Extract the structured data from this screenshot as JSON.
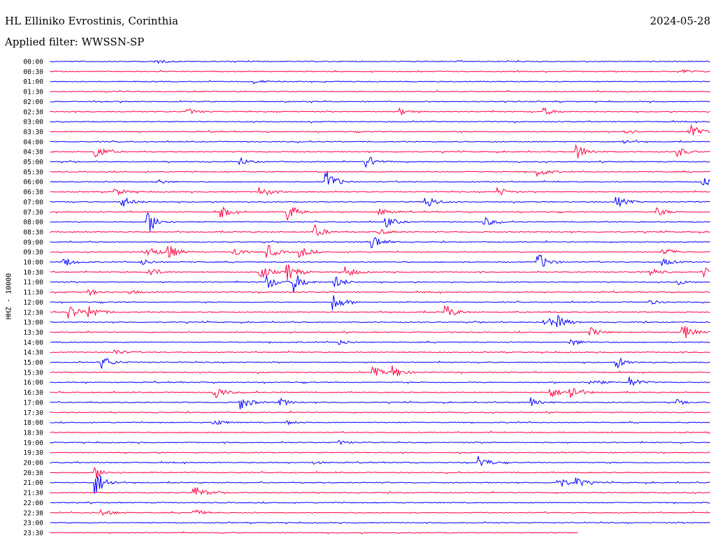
{
  "header": {
    "station": "HL Elliniko Evrostinis, Corinthia",
    "date": "2024-05-28",
    "filter": "Applied filter: WWSSN-SP"
  },
  "chart_data": {
    "type": "line",
    "title": "HL Elliniko Evrostinis, Corinthia",
    "ylabel": "HHZ - 10000",
    "row_labels": [
      "00:00",
      "00:30",
      "01:00",
      "01:30",
      "02:00",
      "02:30",
      "03:00",
      "03:30",
      "04:00",
      "04:30",
      "05:00",
      "05:30",
      "06:00",
      "06:30",
      "07:00",
      "07:30",
      "08:00",
      "08:30",
      "09:00",
      "09:30",
      "10:00",
      "10:30",
      "11:00",
      "11:30",
      "12:00",
      "12:30",
      "13:00",
      "13:30",
      "14:00",
      "14:30",
      "15:00",
      "15:30",
      "16:00",
      "16:30",
      "17:00",
      "17:30",
      "18:00",
      "18:30",
      "19:00",
      "19:30",
      "20:00",
      "20:30",
      "21:00",
      "21:30",
      "22:00",
      "22:30",
      "23:00",
      "23:30"
    ],
    "colors": [
      "#0000ff",
      "#ff0040"
    ],
    "row_interval_minutes": 30,
    "last_row_fraction_recorded": 0.8,
    "events": [
      [
        [
          0.16,
          0.6
        ]
      ],
      [
        [
          0.96,
          0.5
        ]
      ],
      [
        [
          0.31,
          0.5
        ]
      ],
      [],
      [],
      [
        [
          0.21,
          0.7
        ],
        [
          0.53,
          1.0
        ],
        [
          0.75,
          1.0
        ]
      ],
      [],
      [
        [
          0.97,
          2.2
        ],
        [
          0.87,
          0.8
        ]
      ],
      [
        [
          0.87,
          0.6
        ]
      ],
      [
        [
          0.07,
          2.0
        ],
        [
          0.8,
          2.0
        ],
        [
          0.95,
          1.5
        ]
      ],
      [
        [
          0.29,
          0.8
        ],
        [
          0.48,
          2.0
        ]
      ],
      [
        [
          0.74,
          1.2
        ]
      ],
      [
        [
          0.16,
          0.8
        ],
        [
          0.42,
          3.0
        ],
        [
          0.99,
          1.3
        ]
      ],
      [
        [
          0.1,
          1.0
        ],
        [
          0.32,
          1.5
        ],
        [
          0.68,
          1.2
        ]
      ],
      [
        [
          0.11,
          1.5
        ],
        [
          0.57,
          2.0
        ],
        [
          0.86,
          1.5
        ]
      ],
      [
        [
          0.26,
          1.5
        ],
        [
          0.36,
          2.5
        ],
        [
          0.5,
          1.0
        ],
        [
          0.92,
          1.2
        ]
      ],
      [
        [
          0.15,
          3.0
        ],
        [
          0.51,
          1.5
        ],
        [
          0.66,
          1.2
        ]
      ],
      [
        [
          0.4,
          2.0
        ],
        [
          0.5,
          0.8
        ]
      ],
      [
        [
          0.49,
          2.0
        ]
      ],
      [
        [
          0.15,
          1.5
        ],
        [
          0.18,
          2.0
        ],
        [
          0.28,
          1.2
        ],
        [
          0.33,
          2.0
        ],
        [
          0.38,
          1.5
        ],
        [
          0.93,
          1.2
        ]
      ],
      [
        [
          0.02,
          1.5
        ],
        [
          0.14,
          0.8
        ],
        [
          0.74,
          2.5
        ],
        [
          0.93,
          1.0
        ]
      ],
      [
        [
          0.15,
          1.5
        ],
        [
          0.32,
          2.0
        ],
        [
          0.36,
          2.5
        ],
        [
          0.45,
          1.5
        ],
        [
          0.91,
          1.0
        ],
        [
          0.99,
          1.5
        ]
      ],
      [
        [
          0.33,
          2.0
        ],
        [
          0.37,
          2.8
        ],
        [
          0.43,
          2.0
        ],
        [
          0.95,
          0.8
        ]
      ],
      [
        [
          0.06,
          0.8
        ],
        [
          0.12,
          0.6
        ]
      ],
      [
        [
          0.43,
          2.5
        ],
        [
          0.91,
          0.6
        ]
      ],
      [
        [
          0.03,
          2.0
        ],
        [
          0.06,
          2.0
        ],
        [
          0.6,
          2.0
        ]
      ],
      [
        [
          0.75,
          1.5
        ],
        [
          0.77,
          1.5
        ]
      ],
      [
        [
          0.82,
          1.2
        ],
        [
          0.96,
          2.2
        ]
      ],
      [
        [
          0.44,
          0.6
        ],
        [
          0.79,
          1.0
        ]
      ],
      [
        [
          0.1,
          0.8
        ]
      ],
      [
        [
          0.08,
          1.8
        ],
        [
          0.86,
          1.5
        ]
      ],
      [
        [
          0.49,
          1.5
        ],
        [
          0.52,
          1.8
        ]
      ],
      [
        [
          0.82,
          1.2
        ],
        [
          0.88,
          1.5
        ]
      ],
      [
        [
          0.25,
          2.0
        ],
        [
          0.76,
          1.5
        ],
        [
          0.79,
          2.0
        ]
      ],
      [
        [
          0.29,
          2.0
        ],
        [
          0.35,
          1.0
        ],
        [
          0.73,
          1.5
        ],
        [
          0.95,
          0.6
        ]
      ],
      [],
      [
        [
          0.25,
          0.8
        ],
        [
          0.36,
          0.5
        ]
      ],
      [],
      [
        [
          0.44,
          0.5
        ]
      ],
      [],
      [
        [
          0.65,
          2.0
        ],
        [
          0.4,
          0.4
        ]
      ],
      [
        [
          0.07,
          1.5
        ]
      ],
      [
        [
          0.07,
          3.5
        ],
        [
          0.77,
          1.8
        ],
        [
          0.8,
          1.2
        ]
      ],
      [
        [
          0.22,
          1.8
        ]
      ],
      [],
      [
        [
          0.08,
          1.0
        ],
        [
          0.22,
          0.8
        ]
      ],
      [],
      []
    ]
  }
}
